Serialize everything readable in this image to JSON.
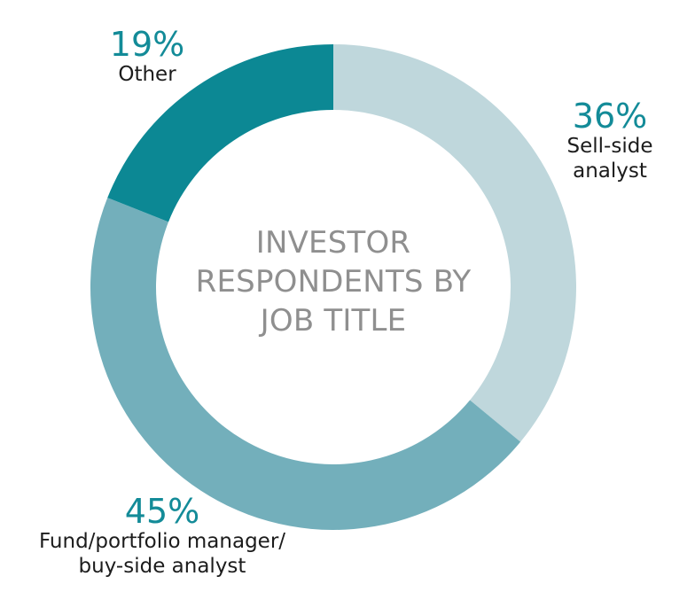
{
  "chart_data": {
    "type": "pie",
    "donut": true,
    "title_lines": [
      "INVESTOR",
      "RESPONDENTS BY",
      "JOB TITLE"
    ],
    "slices": [
      {
        "value": 36,
        "percent_label": "36%",
        "label_lines": [
          "Sell-side",
          "analyst"
        ],
        "color": "#bfd7dc"
      },
      {
        "value": 45,
        "percent_label": "45%",
        "label_lines": [
          "Fund/portfolio manager/",
          "buy-side analyst"
        ],
        "color": "#73afbb"
      },
      {
        "value": 19,
        "percent_label": "19%",
        "label_lines": [
          "Other"
        ],
        "color": "#0c8894"
      }
    ],
    "accent_color": "#138b98"
  }
}
